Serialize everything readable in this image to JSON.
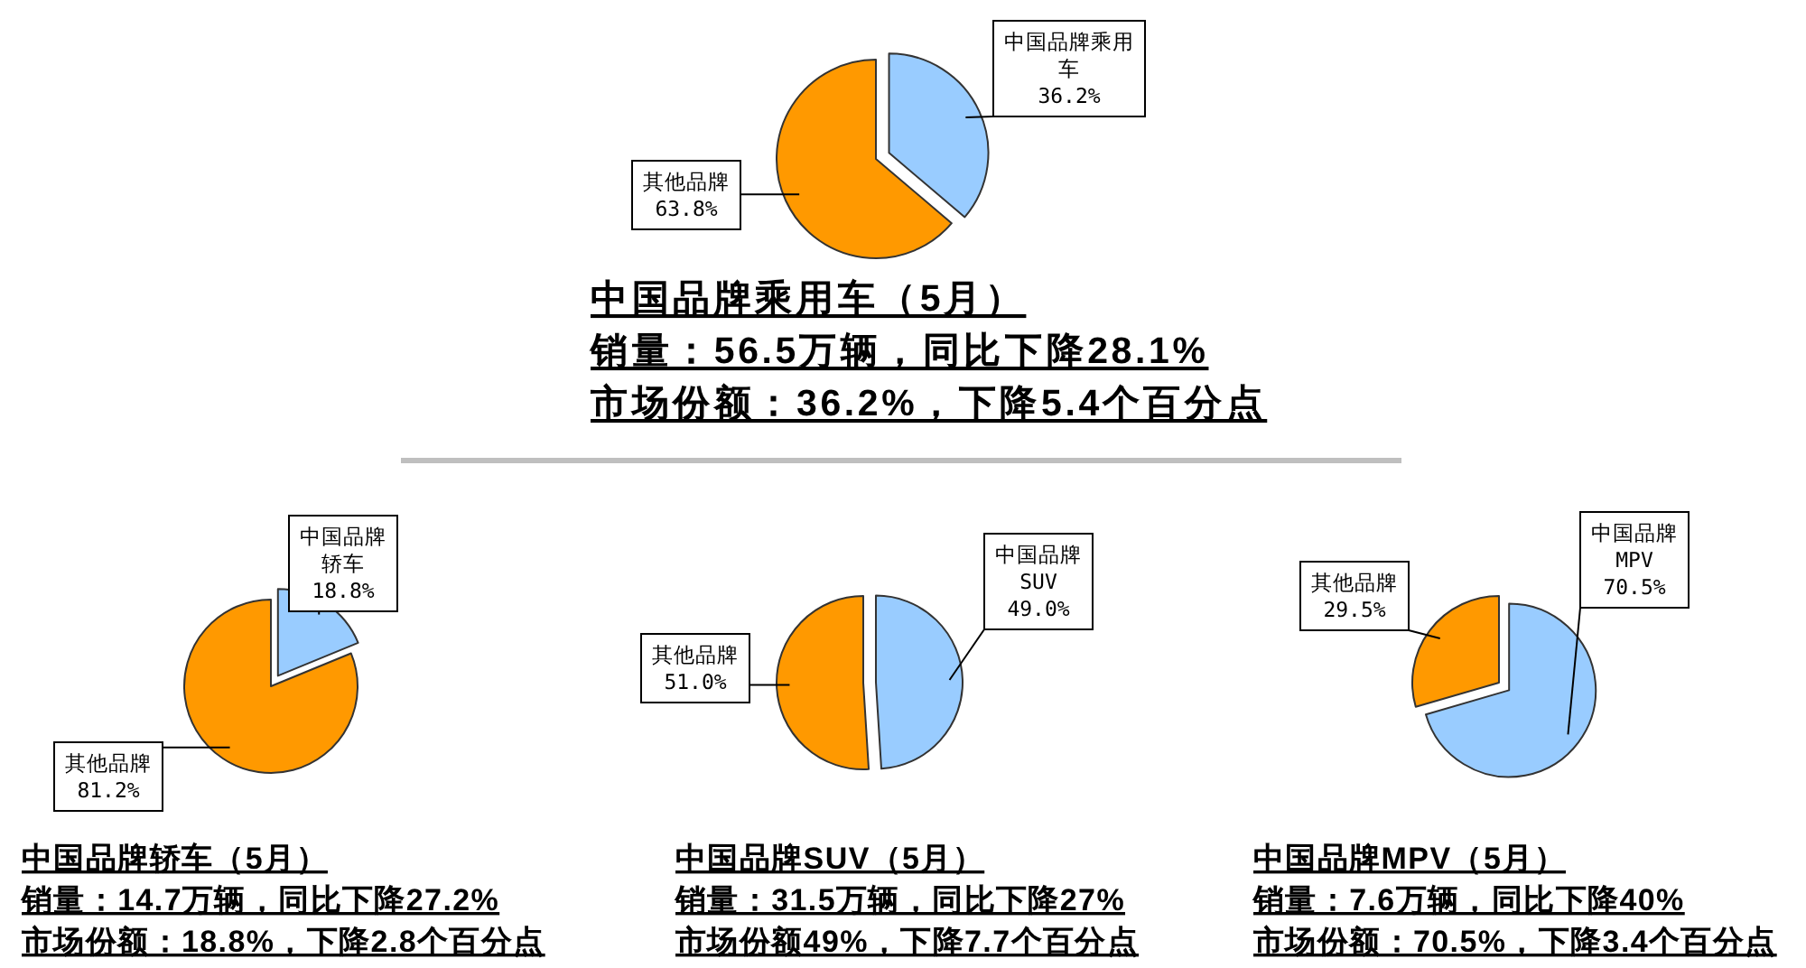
{
  "chart_data": [
    {
      "type": "pie",
      "title": "中国品牌乘用车（5月）",
      "categories": [
        "中国品牌乘用车",
        "其他品牌"
      ],
      "values": [
        36.2,
        63.8
      ],
      "colors": [
        "#99ccff",
        "#ff9900"
      ],
      "value_labels": [
        "36.2%",
        "63.8%"
      ],
      "annotations": [
        "销量：56.5万辆，同比下降28.1%",
        "市场份额：36.2%，下降5.4个百分点"
      ]
    },
    {
      "type": "pie",
      "title": "中国品牌轿车（5月）",
      "categories": [
        "中国品牌轿车",
        "其他品牌"
      ],
      "values": [
        18.8,
        81.2
      ],
      "colors": [
        "#99ccff",
        "#ff9900"
      ],
      "value_labels": [
        "18.8%",
        "81.2%"
      ],
      "annotations": [
        "销量：14.7万辆，同比下降27.2%",
        "市场份额：18.8%，下降2.8个百分点"
      ]
    },
    {
      "type": "pie",
      "title": "中国品牌SUV（5月）",
      "categories": [
        "中国品牌SUV",
        "其他品牌"
      ],
      "values": [
        49.0,
        51.0
      ],
      "colors": [
        "#99ccff",
        "#ff9900"
      ],
      "value_labels": [
        "49.0%",
        "51.0%"
      ],
      "annotations": [
        "销量：31.5万辆，同比下降27%",
        "市场份额49%，下降7.7个百分点"
      ]
    },
    {
      "type": "pie",
      "title": "中国品牌MPV（5月）",
      "categories": [
        "中国品牌MPV",
        "其他品牌"
      ],
      "values": [
        70.5,
        29.5
      ],
      "colors": [
        "#99ccff",
        "#ff9900"
      ],
      "value_labels": [
        "70.5%",
        "29.5%"
      ],
      "annotations": [
        "销量：7.6万辆，同比下降40%",
        "市场份额：70.5%，下降3.4个百分点"
      ]
    }
  ]
}
